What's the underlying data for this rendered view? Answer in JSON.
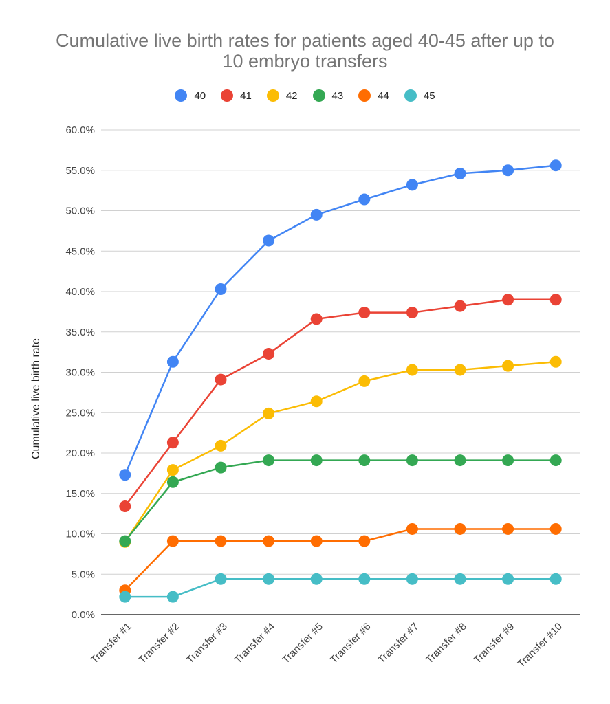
{
  "chart_data": {
    "type": "line",
    "title_lines": [
      "Cumulative live birth rates for patients aged 40-45 after up to",
      "10 embryo transfers"
    ],
    "xlabel": "",
    "ylabel": "Cumulative live birth rate",
    "ylim": [
      0,
      60
    ],
    "yticks": [
      "0.0%",
      "5.0%",
      "10.0%",
      "15.0%",
      "20.0%",
      "25.0%",
      "30.0%",
      "35.0%",
      "40.0%",
      "45.0%",
      "50.0%",
      "55.0%",
      "60.0%"
    ],
    "grid": true,
    "legend_position": "top",
    "categories": [
      "Transfer #1",
      "Transfer #2",
      "Transfer #3",
      "Transfer #4",
      "Transfer #5",
      "Transfer #6",
      "Transfer #7",
      "Transfer #8",
      "Transfer #9",
      "Transfer #10"
    ],
    "series": [
      {
        "name": "40",
        "color": "#4285F4",
        "values": [
          17.3,
          31.3,
          40.3,
          46.3,
          49.5,
          51.4,
          53.2,
          54.6,
          55.0,
          55.6
        ]
      },
      {
        "name": "41",
        "color": "#EA4335",
        "values": [
          13.4,
          21.3,
          29.1,
          32.3,
          36.6,
          37.4,
          37.4,
          38.2,
          39.0,
          39.0
        ]
      },
      {
        "name": "42",
        "color": "#FBBC04",
        "values": [
          9.0,
          17.9,
          20.9,
          24.9,
          26.4,
          28.9,
          30.3,
          30.3,
          30.8,
          31.3
        ]
      },
      {
        "name": "43",
        "color": "#34A853",
        "values": [
          9.1,
          16.4,
          18.2,
          19.1,
          19.1,
          19.1,
          19.1,
          19.1,
          19.1,
          19.1
        ]
      },
      {
        "name": "44",
        "color": "#FF6D01",
        "values": [
          3.0,
          9.1,
          9.1,
          9.1,
          9.1,
          9.1,
          10.6,
          10.6,
          10.6,
          10.6
        ]
      },
      {
        "name": "45",
        "color": "#46BDC6",
        "values": [
          2.2,
          2.2,
          4.4,
          4.4,
          4.4,
          4.4,
          4.4,
          4.4,
          4.4,
          4.4
        ]
      }
    ]
  }
}
